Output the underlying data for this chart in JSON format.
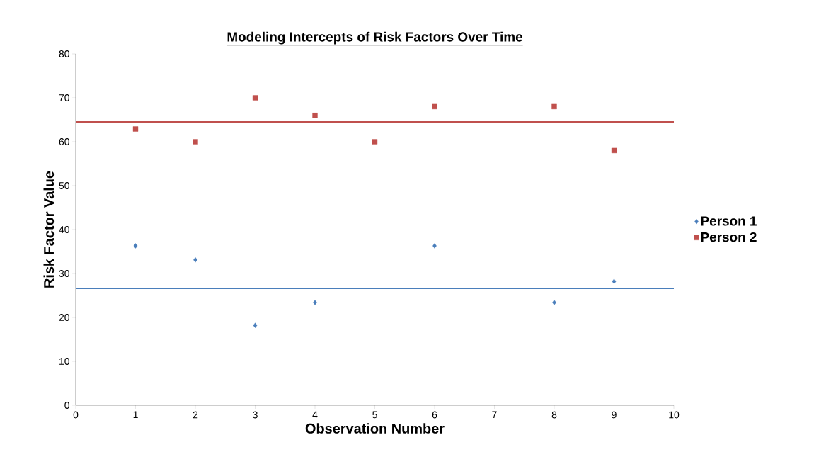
{
  "chart_data": {
    "type": "scatter",
    "title": "Modeling Intercepts of Risk Factors Over Time",
    "xlabel": "Observation Number",
    "ylabel": "Risk Factor Value",
    "x": [
      1,
      2,
      3,
      4,
      5,
      6,
      7,
      8,
      9
    ],
    "series": [
      {
        "name": "Person 1",
        "color": "#4a7ebb",
        "marker": "diamond",
        "values": [
          36.3,
          33.1,
          18.2,
          23.4,
          null,
          36.3,
          null,
          23.4,
          28.2
        ]
      },
      {
        "name": "Person 2",
        "color": "#c0504d",
        "marker": "square",
        "values": [
          62.9,
          60,
          70,
          66,
          60,
          68,
          null,
          68,
          58
        ]
      }
    ],
    "ref_lines": [
      {
        "axis": "y",
        "value": 26.6,
        "color": "#4a7ebb"
      },
      {
        "axis": "y",
        "value": 64.5,
        "color": "#c0504d"
      }
    ],
    "xlim": [
      0,
      10
    ],
    "xticks": [
      0,
      1,
      2,
      3,
      4,
      5,
      6,
      7,
      8,
      9,
      10
    ],
    "ylim": [
      0,
      80
    ],
    "yticks": [
      0,
      10,
      20,
      30,
      40,
      50,
      60,
      70,
      80
    ],
    "legend": "right",
    "grid": false
  }
}
